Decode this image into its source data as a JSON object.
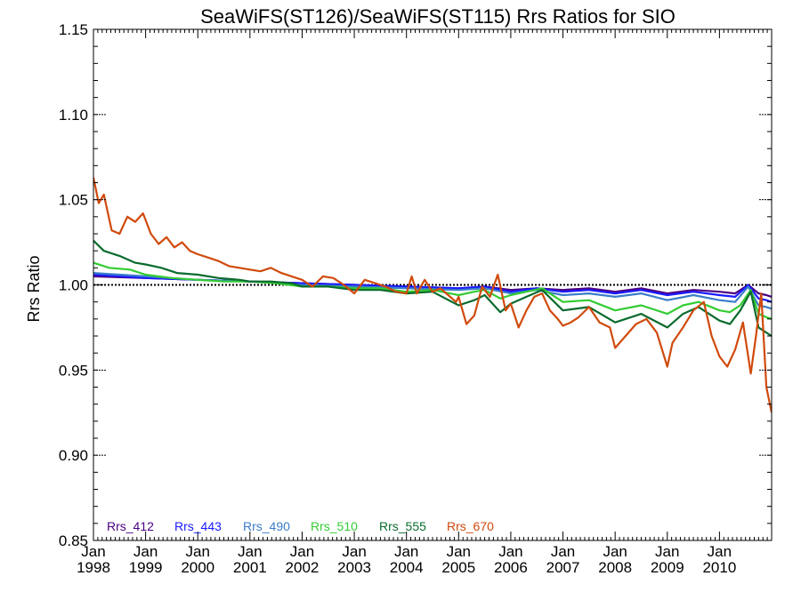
{
  "chart_data": {
    "type": "line",
    "title": "SeaWiFS(ST126)/SeaWiFS(ST115)  Rrs Ratios for SIO",
    "ylabel": "Rrs Ratio",
    "xlabel": "",
    "xlim": [
      1998.0,
      2011.0
    ],
    "ylim": [
      0.85,
      1.15
    ],
    "yticks": [
      0.85,
      0.9,
      0.95,
      1.0,
      1.05,
      1.1,
      1.15
    ],
    "ytick_labels": [
      "0.85",
      "0.90",
      "0.95",
      "1.00",
      "1.05",
      "1.10",
      "1.15"
    ],
    "xticks": [
      {
        "x": 1998,
        "top": "Jan",
        "bottom": "1998"
      },
      {
        "x": 1999,
        "top": "Jan",
        "bottom": "1999"
      },
      {
        "x": 2000,
        "top": "Jan",
        "bottom": "2000"
      },
      {
        "x": 2001,
        "top": "Jan",
        "bottom": "2001"
      },
      {
        "x": 2002,
        "top": "Jan",
        "bottom": "2002"
      },
      {
        "x": 2003,
        "top": "Jan",
        "bottom": "2003"
      },
      {
        "x": 2004,
        "top": "Jan",
        "bottom": "2004"
      },
      {
        "x": 2005,
        "top": "Jan",
        "bottom": "2005"
      },
      {
        "x": 2006,
        "top": "Jan",
        "bottom": "2006"
      },
      {
        "x": 2007,
        "top": "Jan",
        "bottom": "2007"
      },
      {
        "x": 2008,
        "top": "Jan",
        "bottom": "2008"
      },
      {
        "x": 2009,
        "top": "Jan",
        "bottom": "2009"
      },
      {
        "x": 2010,
        "top": "Jan",
        "bottom": "2010"
      }
    ],
    "reference_line": 1.0,
    "grid": false,
    "legend_position": "bottom-left",
    "series": [
      {
        "name": "Rrs_412",
        "color": "#4b0082",
        "x": [
          1998.0,
          1999.0,
          2000.0,
          2001.0,
          2002.0,
          2003.0,
          2004.0,
          2005.0,
          2005.5,
          2006.0,
          2006.5,
          2007.0,
          2007.5,
          2008.0,
          2008.5,
          2009.0,
          2009.5,
          2010.0,
          2010.3,
          2010.55,
          2010.75,
          2010.9,
          2011.0
        ],
        "y": [
          1.005,
          1.004,
          1.003,
          1.002,
          1.001,
          1.0,
          0.999,
          0.998,
          0.999,
          0.997,
          0.998,
          0.997,
          0.998,
          0.996,
          0.998,
          0.995,
          0.997,
          0.996,
          0.995,
          1.0,
          0.995,
          0.994,
          0.993
        ]
      },
      {
        "name": "Rrs_443",
        "color": "#1a1aff",
        "x": [
          1998.0,
          1999.0,
          2000.0,
          2001.0,
          2002.0,
          2003.0,
          2004.0,
          2005.0,
          2005.5,
          2006.0,
          2006.5,
          2007.0,
          2007.5,
          2008.0,
          2008.5,
          2009.0,
          2009.5,
          2010.0,
          2010.3,
          2010.55,
          2010.75,
          2010.9,
          2011.0
        ],
        "y": [
          1.006,
          1.004,
          1.003,
          1.002,
          1.001,
          1.0,
          0.999,
          0.998,
          0.999,
          0.996,
          0.998,
          0.996,
          0.997,
          0.995,
          0.997,
          0.994,
          0.996,
          0.994,
          0.993,
          1.0,
          0.992,
          0.991,
          0.99
        ]
      },
      {
        "name": "Rrs_490",
        "color": "#3a7dc9",
        "x": [
          1998.0,
          1999.0,
          2000.0,
          2001.0,
          2002.0,
          2003.0,
          2004.0,
          2005.0,
          2005.5,
          2006.0,
          2006.5,
          2007.0,
          2007.5,
          2008.0,
          2008.5,
          2009.0,
          2009.5,
          2010.0,
          2010.3,
          2010.55,
          2010.75,
          2010.9,
          2011.0
        ],
        "y": [
          1.007,
          1.005,
          1.003,
          1.002,
          1.0,
          0.999,
          0.998,
          0.997,
          0.998,
          0.995,
          0.997,
          0.994,
          0.995,
          0.993,
          0.995,
          0.991,
          0.994,
          0.991,
          0.99,
          0.999,
          0.988,
          0.987,
          0.986
        ]
      },
      {
        "name": "Rrs_510",
        "color": "#33cc33",
        "x": [
          1998.0,
          1998.3,
          1998.7,
          1999.0,
          1999.5,
          2000.0,
          2000.5,
          2001.0,
          2001.5,
          2002.0,
          2002.5,
          2003.0,
          2003.5,
          2004.0,
          2004.5,
          2005.0,
          2005.3,
          2005.5,
          2005.8,
          2006.0,
          2006.3,
          2006.6,
          2007.0,
          2007.5,
          2008.0,
          2008.5,
          2009.0,
          2009.3,
          2009.6,
          2010.0,
          2010.2,
          2010.4,
          2010.6,
          2010.75,
          2010.9,
          2011.0
        ],
        "y": [
          1.013,
          1.01,
          1.009,
          1.006,
          1.004,
          1.003,
          1.002,
          1.002,
          1.001,
          0.999,
          0.999,
          0.998,
          0.998,
          0.996,
          0.997,
          0.994,
          0.996,
          0.997,
          0.992,
          0.994,
          0.996,
          0.998,
          0.99,
          0.991,
          0.985,
          0.988,
          0.983,
          0.988,
          0.99,
          0.985,
          0.984,
          0.988,
          0.997,
          0.983,
          0.981,
          0.98
        ]
      },
      {
        "name": "Rrs_555",
        "color": "#0a6b2e",
        "x": [
          1998.0,
          1998.2,
          1998.5,
          1998.8,
          1999.0,
          1999.3,
          1999.6,
          2000.0,
          2000.4,
          2000.8,
          2001.0,
          2001.4,
          2001.8,
          2002.0,
          2002.5,
          2003.0,
          2003.5,
          2004.0,
          2004.5,
          2005.0,
          2005.3,
          2005.5,
          2005.8,
          2006.0,
          2006.3,
          2006.6,
          2007.0,
          2007.5,
          2008.0,
          2008.5,
          2009.0,
          2009.3,
          2009.6,
          2010.0,
          2010.2,
          2010.4,
          2010.6,
          2010.75,
          2010.9,
          2011.0
        ],
        "y": [
          1.026,
          1.02,
          1.017,
          1.013,
          1.012,
          1.01,
          1.007,
          1.006,
          1.004,
          1.003,
          1.002,
          1.002,
          1.001,
          0.999,
          0.999,
          0.997,
          0.997,
          0.995,
          0.996,
          0.988,
          0.991,
          0.994,
          0.984,
          0.989,
          0.993,
          0.997,
          0.985,
          0.987,
          0.978,
          0.983,
          0.975,
          0.983,
          0.987,
          0.979,
          0.977,
          0.985,
          0.996,
          0.975,
          0.972,
          0.97
        ]
      },
      {
        "name": "Rrs_670",
        "color": "#d04a0c",
        "x": [
          1998.0,
          1998.1,
          1998.2,
          1998.35,
          1998.5,
          1998.65,
          1998.8,
          1998.95,
          1999.1,
          1999.25,
          1999.4,
          1999.55,
          1999.7,
          1999.85,
          2000.0,
          2000.2,
          2000.4,
          2000.6,
          2000.8,
          2001.0,
          2001.2,
          2001.4,
          2001.6,
          2001.8,
          2002.0,
          2002.2,
          2002.4,
          2002.6,
          2002.8,
          2003.0,
          2003.2,
          2003.4,
          2003.6,
          2003.8,
          2004.0,
          2004.1,
          2004.2,
          2004.35,
          2004.5,
          2004.65,
          2004.8,
          2004.95,
          2005.0,
          2005.15,
          2005.3,
          2005.45,
          2005.6,
          2005.75,
          2005.9,
          2006.0,
          2006.15,
          2006.3,
          2006.45,
          2006.6,
          2006.75,
          2006.9,
          2007.0,
          2007.15,
          2007.3,
          2007.5,
          2007.7,
          2007.9,
          2008.0,
          2008.2,
          2008.4,
          2008.6,
          2008.8,
          2009.0,
          2009.1,
          2009.3,
          2009.5,
          2009.7,
          2009.85,
          2010.0,
          2010.15,
          2010.3,
          2010.45,
          2010.6,
          2010.7,
          2010.8,
          2010.9,
          2011.0
        ],
        "y": [
          1.063,
          1.048,
          1.053,
          1.032,
          1.03,
          1.04,
          1.037,
          1.042,
          1.03,
          1.024,
          1.028,
          1.022,
          1.025,
          1.02,
          1.018,
          1.016,
          1.014,
          1.011,
          1.01,
          1.009,
          1.008,
          1.01,
          1.007,
          1.005,
          1.003,
          0.999,
          1.005,
          1.004,
          1.0,
          0.995,
          1.003,
          1.001,
          0.999,
          0.996,
          0.995,
          1.005,
          0.995,
          1.003,
          0.996,
          0.998,
          0.994,
          0.99,
          0.993,
          0.977,
          0.982,
          0.999,
          0.993,
          1.006,
          0.985,
          0.989,
          0.975,
          0.985,
          0.993,
          0.995,
          0.985,
          0.98,
          0.976,
          0.978,
          0.981,
          0.987,
          0.978,
          0.975,
          0.963,
          0.97,
          0.977,
          0.98,
          0.972,
          0.952,
          0.966,
          0.975,
          0.985,
          0.99,
          0.97,
          0.958,
          0.952,
          0.962,
          0.978,
          0.948,
          0.97,
          0.995,
          0.94,
          0.925
        ]
      }
    ]
  }
}
